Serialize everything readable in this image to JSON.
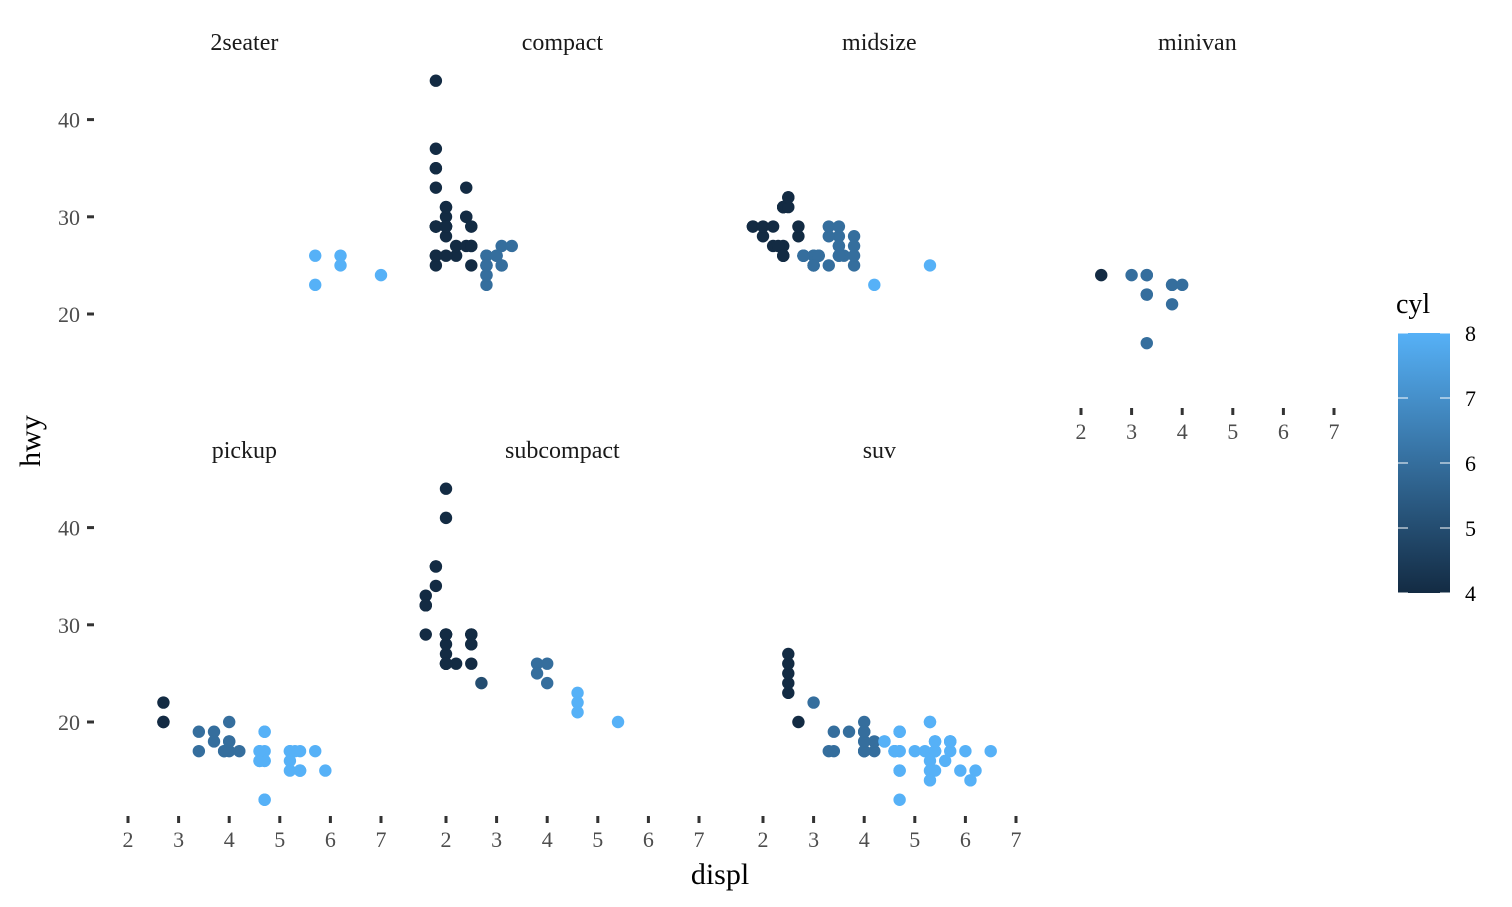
{
  "chart_data": {
    "type": "scatter",
    "xlabel": "displ",
    "ylabel": "hwy",
    "xlim": [
      1.6,
      7.0
    ],
    "ylim": [
      12,
      44
    ],
    "x_ticks": [
      "2",
      "3",
      "4",
      "5",
      "6",
      "7"
    ],
    "y_ticks": [
      "20",
      "30",
      "40"
    ],
    "grid": false,
    "color": {
      "variable": "cyl",
      "title": "cyl",
      "range": [
        4,
        8
      ],
      "ticks": [
        "4",
        "5",
        "6",
        "7",
        "8"
      ],
      "low_color": "#132b43",
      "high_color": "#56b1f7"
    },
    "legend_position": "right",
    "facets": [
      {
        "name": "2seater",
        "points": [
          [
            5.7,
            26,
            8
          ],
          [
            5.7,
            23,
            8
          ],
          [
            6.2,
            26,
            8
          ],
          [
            6.2,
            25,
            8
          ],
          [
            7.0,
            24,
            8
          ]
        ]
      },
      {
        "name": "compact",
        "points": [
          [
            1.8,
            29,
            4
          ],
          [
            1.8,
            29,
            4
          ],
          [
            2.0,
            31,
            4
          ],
          [
            2.0,
            30,
            4
          ],
          [
            2.8,
            26,
            6
          ],
          [
            2.8,
            26,
            6
          ],
          [
            3.1,
            27,
            6
          ],
          [
            1.8,
            26,
            4
          ],
          [
            1.8,
            25,
            4
          ],
          [
            2.0,
            28,
            4
          ],
          [
            2.0,
            29,
            4
          ],
          [
            2.8,
            25,
            6
          ],
          [
            2.8,
            25,
            6
          ],
          [
            3.1,
            25,
            6
          ],
          [
            3.1,
            25,
            6
          ],
          [
            2.2,
            26,
            4
          ],
          [
            2.2,
            27,
            4
          ],
          [
            2.4,
            30,
            4
          ],
          [
            2.4,
            33,
            4
          ],
          [
            3.0,
            26,
            6
          ],
          [
            3.3,
            27,
            6
          ],
          [
            1.8,
            35,
            4
          ],
          [
            1.8,
            37,
            4
          ],
          [
            1.8,
            35,
            4
          ],
          [
            1.8,
            29,
            4
          ],
          [
            1.8,
            29,
            4
          ],
          [
            1.8,
            33,
            4
          ],
          [
            1.8,
            44,
            4
          ],
          [
            2.0,
            29,
            4
          ],
          [
            2.0,
            26,
            4
          ],
          [
            2.0,
            29,
            4
          ],
          [
            2.4,
            27,
            4
          ],
          [
            2.4,
            30,
            4
          ],
          [
            2.5,
            27,
            4
          ],
          [
            2.5,
            25,
            4
          ],
          [
            2.5,
            29,
            4
          ],
          [
            2.5,
            27,
            4
          ],
          [
            2.5,
            29,
            4
          ],
          [
            2.8,
            23,
            6
          ],
          [
            2.8,
            24,
            6
          ],
          [
            1.8,
            29,
            4
          ],
          [
            1.8,
            26,
            4
          ],
          [
            2.0,
            29,
            4
          ],
          [
            2.0,
            31,
            4
          ],
          [
            2.8,
            24,
            6
          ],
          [
            2.8,
            25,
            6
          ],
          [
            3.0,
            26,
            6
          ]
        ]
      },
      {
        "name": "midsize",
        "points": [
          [
            2.8,
            26,
            6
          ],
          [
            3.1,
            26,
            6
          ],
          [
            4.2,
            23,
            8
          ],
          [
            2.4,
            31,
            4
          ],
          [
            2.4,
            31,
            4
          ],
          [
            3.1,
            26,
            6
          ],
          [
            3.5,
            27,
            6
          ],
          [
            3.6,
            26,
            6
          ],
          [
            3.8,
            25,
            6
          ],
          [
            2.4,
            26,
            4
          ],
          [
            2.4,
            27,
            4
          ],
          [
            2.4,
            31,
            4
          ],
          [
            2.4,
            31,
            4
          ],
          [
            3.0,
            26,
            6
          ],
          [
            3.0,
            26,
            6
          ],
          [
            3.5,
            28,
            6
          ],
          [
            3.0,
            25,
            6
          ],
          [
            3.0,
            25,
            6
          ],
          [
            3.5,
            27,
            6
          ],
          [
            3.3,
            28,
            6
          ],
          [
            3.3,
            29,
            6
          ],
          [
            3.5,
            26,
            6
          ],
          [
            3.8,
            28,
            6
          ],
          [
            3.8,
            27,
            6
          ],
          [
            3.8,
            26,
            6
          ],
          [
            5.3,
            25,
            8
          ],
          [
            3.5,
            29,
            6
          ],
          [
            1.8,
            29,
            4
          ],
          [
            1.8,
            29,
            4
          ],
          [
            2.0,
            28,
            4
          ],
          [
            2.0,
            29,
            4
          ],
          [
            2.8,
            26,
            6
          ],
          [
            2.8,
            26,
            6
          ],
          [
            3.1,
            26,
            6
          ],
          [
            2.2,
            27,
            4
          ],
          [
            2.2,
            29,
            4
          ],
          [
            2.5,
            31,
            4
          ],
          [
            2.5,
            32,
            4
          ],
          [
            3.0,
            25,
            6
          ],
          [
            3.3,
            25,
            6
          ],
          [
            2.3,
            27,
            4
          ],
          [
            2.4,
            26,
            4
          ],
          [
            2.4,
            26,
            4
          ],
          [
            2.5,
            32,
            4
          ],
          [
            2.7,
            28,
            4
          ],
          [
            2.7,
            29,
            4
          ],
          [
            2.8,
            26,
            6
          ],
          [
            3.5,
            26,
            6
          ]
        ]
      },
      {
        "name": "minivan",
        "points": [
          [
            2.4,
            24,
            4
          ],
          [
            3.0,
            24,
            6
          ],
          [
            3.3,
            22,
            6
          ],
          [
            3.3,
            24,
            6
          ],
          [
            3.3,
            24,
            6
          ],
          [
            3.3,
            17,
            6
          ],
          [
            3.3,
            22,
            6
          ],
          [
            3.8,
            21,
            6
          ],
          [
            3.8,
            23,
            6
          ],
          [
            3.8,
            23,
            6
          ],
          [
            4.0,
            23,
            6
          ]
        ]
      },
      {
        "name": "pickup",
        "points": [
          [
            3.7,
            19,
            6
          ],
          [
            3.7,
            18,
            6
          ],
          [
            3.9,
            17,
            6
          ],
          [
            3.9,
            17,
            6
          ],
          [
            4.7,
            19,
            8
          ],
          [
            4.7,
            19,
            8
          ],
          [
            4.7,
            12,
            8
          ],
          [
            5.2,
            17,
            8
          ],
          [
            5.2,
            17,
            8
          ],
          [
            5.7,
            17,
            8
          ],
          [
            5.9,
            15,
            8
          ],
          [
            4.7,
            16,
            8
          ],
          [
            4.7,
            16,
            8
          ],
          [
            4.7,
            12,
            8
          ],
          [
            4.7,
            17,
            8
          ],
          [
            5.2,
            15,
            8
          ],
          [
            5.2,
            16,
            8
          ],
          [
            5.3,
            17,
            8
          ],
          [
            5.4,
            15,
            8
          ],
          [
            5.4,
            15,
            8
          ],
          [
            2.7,
            20,
            4
          ],
          [
            2.7,
            20,
            4
          ],
          [
            2.7,
            22,
            4
          ],
          [
            3.4,
            17,
            6
          ],
          [
            3.4,
            19,
            6
          ],
          [
            4.0,
            18,
            6
          ],
          [
            4.0,
            20,
            6
          ],
          [
            4.0,
            17,
            6
          ],
          [
            4.0,
            18,
            6
          ],
          [
            4.2,
            17,
            6
          ],
          [
            4.6,
            16,
            8
          ],
          [
            4.6,
            16,
            8
          ],
          [
            4.6,
            17,
            8
          ],
          [
            4.6,
            16,
            8
          ],
          [
            4.6,
            17,
            8
          ],
          [
            5.4,
            17,
            8
          ],
          [
            5.4,
            15,
            8
          ]
        ]
      },
      {
        "name": "subcompact",
        "points": [
          [
            3.8,
            26,
            6
          ],
          [
            3.8,
            25,
            6
          ],
          [
            4.0,
            26,
            6
          ],
          [
            4.0,
            24,
            6
          ],
          [
            4.6,
            21,
            8
          ],
          [
            4.6,
            22,
            8
          ],
          [
            4.6,
            23,
            8
          ],
          [
            5.4,
            20,
            8
          ],
          [
            1.6,
            33,
            4
          ],
          [
            1.6,
            32,
            4
          ],
          [
            1.6,
            32,
            4
          ],
          [
            1.6,
            29,
            4
          ],
          [
            1.6,
            32,
            4
          ],
          [
            1.8,
            34,
            4
          ],
          [
            1.8,
            36,
            4
          ],
          [
            1.8,
            36,
            4
          ],
          [
            2.0,
            29,
            4
          ],
          [
            2.0,
            26,
            4
          ],
          [
            2.0,
            27,
            4
          ],
          [
            2.0,
            29,
            4
          ],
          [
            2.2,
            26,
            4
          ],
          [
            2.5,
            26,
            4
          ],
          [
            2.5,
            28,
            4
          ],
          [
            2.5,
            29,
            4
          ],
          [
            2.0,
            28,
            4
          ],
          [
            2.0,
            29,
            4
          ],
          [
            2.0,
            44,
            4
          ],
          [
            2.0,
            41,
            4
          ],
          [
            2.0,
            26,
            4
          ],
          [
            2.0,
            29,
            4
          ],
          [
            2.5,
            29,
            4
          ],
          [
            2.7,
            24,
            5
          ],
          [
            2.5,
            28,
            4
          ],
          [
            2.5,
            29,
            4
          ],
          [
            2.0,
            26,
            4
          ]
        ]
      },
      {
        "name": "suv",
        "points": [
          [
            5.3,
            20,
            8
          ],
          [
            5.3,
            15,
            8
          ],
          [
            5.3,
            20,
            8
          ],
          [
            5.7,
            17,
            8
          ],
          [
            6.0,
            17,
            8
          ],
          [
            5.7,
            18,
            8
          ],
          [
            5.7,
            18,
            8
          ],
          [
            6.2,
            15,
            8
          ],
          [
            6.5,
            17,
            8
          ],
          [
            3.7,
            19,
            6
          ],
          [
            4.7,
            17,
            8
          ],
          [
            4.7,
            15,
            8
          ],
          [
            5.2,
            17,
            8
          ],
          [
            5.7,
            18,
            8
          ],
          [
            5.9,
            15,
            8
          ],
          [
            4.6,
            17,
            8
          ],
          [
            5.4,
            18,
            8
          ],
          [
            5.4,
            17,
            8
          ],
          [
            4.0,
            18,
            6
          ],
          [
            4.0,
            17,
            6
          ],
          [
            4.6,
            17,
            8
          ],
          [
            5.0,
            17,
            8
          ],
          [
            4.2,
            17,
            6
          ],
          [
            4.4,
            18,
            8
          ],
          [
            4.6,
            17,
            8
          ],
          [
            5.4,
            17,
            8
          ],
          [
            5.4,
            18,
            8
          ],
          [
            5.4,
            17,
            8
          ],
          [
            4.0,
            17,
            6
          ],
          [
            4.0,
            19,
            6
          ],
          [
            4.0,
            20,
            6
          ],
          [
            4.0,
            19,
            6
          ],
          [
            4.0,
            17,
            6
          ],
          [
            4.0,
            18,
            6
          ],
          [
            4.6,
            17,
            8
          ],
          [
            5.4,
            18,
            8
          ],
          [
            4.7,
            19,
            8
          ],
          [
            4.7,
            19,
            8
          ],
          [
            4.7,
            12,
            8
          ],
          [
            4.7,
            17,
            8
          ],
          [
            5.7,
            18,
            8
          ],
          [
            6.1,
            14,
            8
          ],
          [
            4.0,
            19,
            6
          ],
          [
            4.2,
            18,
            6
          ],
          [
            4.4,
            18,
            8
          ],
          [
            4.6,
            17,
            8
          ],
          [
            5.4,
            17,
            8
          ],
          [
            5.4,
            15,
            8
          ],
          [
            2.5,
            23,
            4
          ],
          [
            2.5,
            24,
            4
          ],
          [
            2.5,
            25,
            4
          ],
          [
            2.5,
            26,
            4
          ],
          [
            2.5,
            27,
            4
          ],
          [
            2.7,
            20,
            4
          ],
          [
            3.3,
            17,
            6
          ],
          [
            3.4,
            19,
            6
          ],
          [
            3.4,
            17,
            6
          ],
          [
            3.0,
            22,
            6
          ],
          [
            4.7,
            15,
            8
          ],
          [
            5.3,
            14,
            8
          ],
          [
            5.6,
            16,
            8
          ],
          [
            4.7,
            19,
            8
          ],
          [
            5.3,
            16,
            8
          ]
        ]
      }
    ]
  }
}
